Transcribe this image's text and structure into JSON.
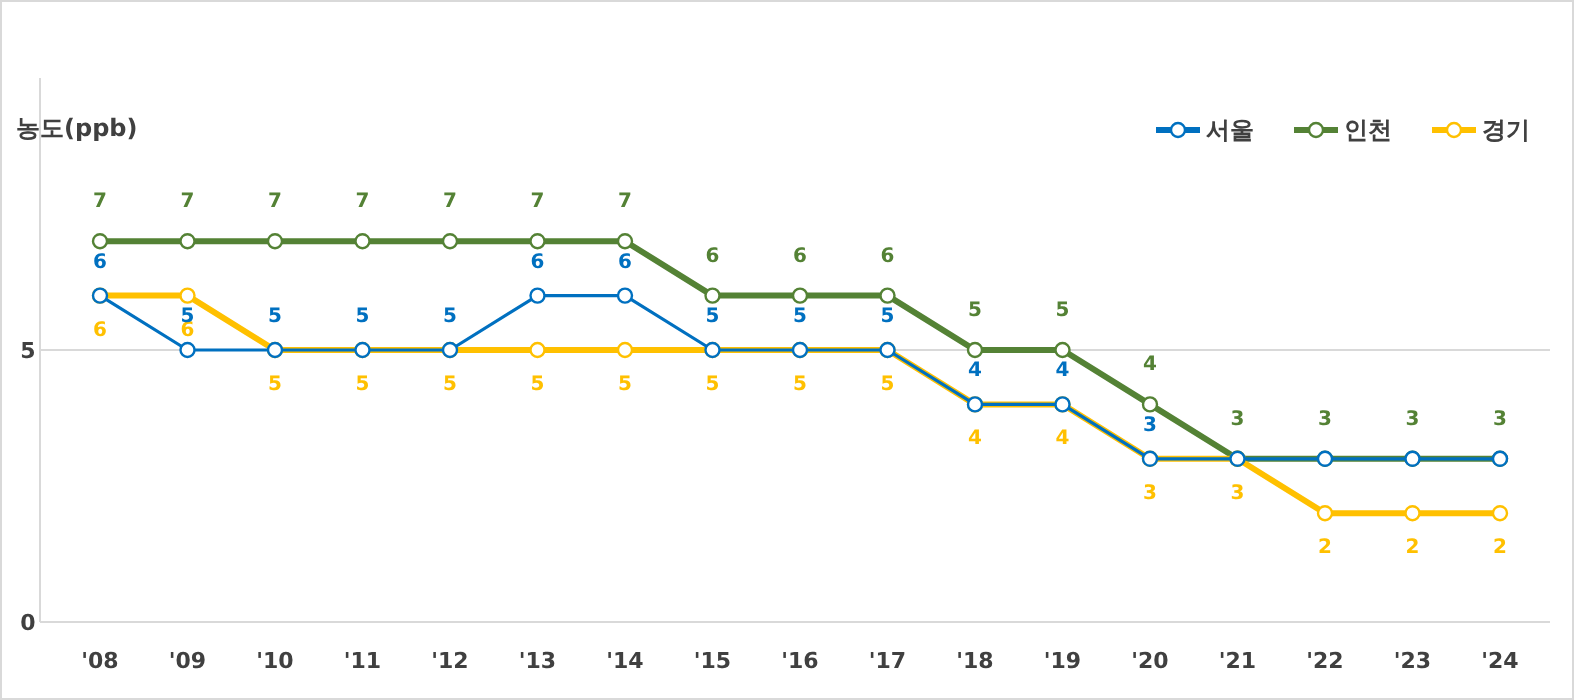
{
  "chart_data": {
    "type": "line",
    "ylabel": "농도(ppb)",
    "categories": [
      "'08",
      "'09",
      "'10",
      "'11",
      "'12",
      "'13",
      "'14",
      "'15",
      "'16",
      "'17",
      "'18",
      "'19",
      "'20",
      "'21",
      "'22",
      "'23",
      "'24"
    ],
    "series": [
      {
        "name": "서울",
        "color": "#0070c0",
        "values": [
          6,
          5,
          5,
          5,
          5,
          6,
          6,
          5,
          5,
          5,
          4,
          4,
          3,
          3,
          3,
          3,
          3
        ],
        "value_labels": [
          "6",
          "5",
          "5",
          "5",
          "5",
          "6",
          "6",
          "5",
          "5",
          "5",
          "4",
          "4",
          "3",
          null,
          null,
          null,
          null
        ]
      },
      {
        "name": "인천",
        "color": "#548235",
        "values": [
          7,
          7,
          7,
          7,
          7,
          7,
          7,
          6,
          6,
          6,
          5,
          5,
          4,
          3,
          3,
          3,
          3
        ]
      },
      {
        "name": "경기",
        "color": "#ffc000",
        "values": [
          6,
          6,
          5,
          5,
          5,
          5,
          5,
          5,
          5,
          5,
          4,
          4,
          3,
          3,
          2,
          2,
          2
        ]
      }
    ],
    "ylim": [
      0,
      10
    ],
    "yticks": [
      0,
      5
    ],
    "grid": "y",
    "legend": "top right",
    "marker": "circle",
    "data_labels": true
  }
}
